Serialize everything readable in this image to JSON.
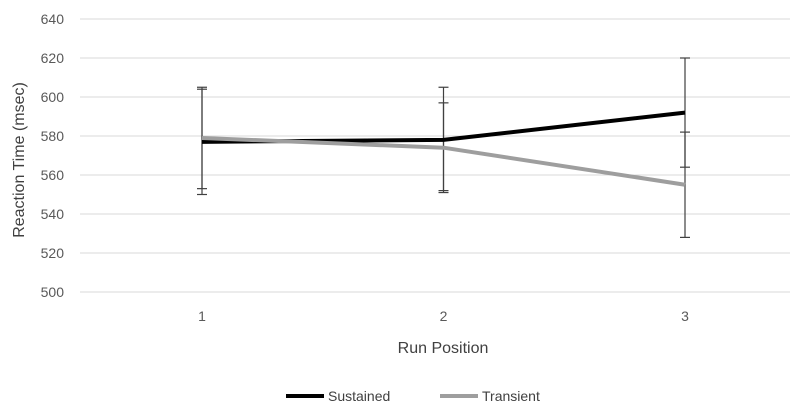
{
  "chart_data": {
    "type": "line",
    "categories": [
      "1",
      "2",
      "3"
    ],
    "xlabel": "Run Position",
    "ylabel": "Reaction Time (msec)",
    "ylim": [
      500,
      640
    ],
    "yticks": [
      500,
      520,
      540,
      560,
      580,
      600,
      620,
      640
    ],
    "grid": true,
    "legend_position": "bottom",
    "series": [
      {
        "name": "Sustained",
        "color": "#000000",
        "values": [
          577,
          578,
          592
        ],
        "error_low": [
          550,
          552,
          564
        ],
        "error_high": [
          605,
          605,
          620
        ]
      },
      {
        "name": "Transient",
        "color": "#9e9e9e",
        "values": [
          579,
          574,
          555
        ],
        "error_low": [
          553,
          551,
          528
        ],
        "error_high": [
          604,
          597,
          582
        ]
      }
    ]
  }
}
